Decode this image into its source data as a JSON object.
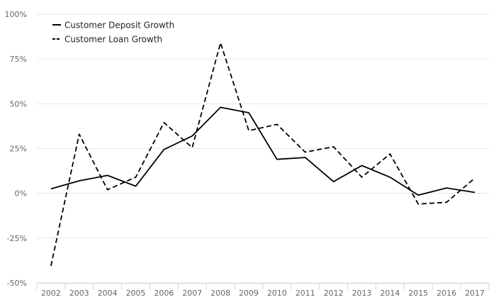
{
  "chart_data": {
    "type": "line",
    "title": "",
    "xlabel": "",
    "ylabel": "",
    "categories": [
      "2002",
      "2003",
      "2004",
      "2005",
      "2006",
      "2007",
      "2008",
      "2009",
      "2010",
      "2011",
      "2012",
      "2013",
      "2014",
      "2015",
      "2016",
      "2017"
    ],
    "y_ticks": [
      -50,
      -25,
      0,
      25,
      50,
      75,
      100
    ],
    "y_tick_labels": [
      "-50%",
      "-25%",
      "0%",
      "25%",
      "50%",
      "75%",
      "100%"
    ],
    "ylim": [
      -50,
      100
    ],
    "grid": true,
    "legend_position": "top-left",
    "series": [
      {
        "name": "Customer Deposit Growth",
        "line_style": "solid",
        "color": "#000000",
        "values": [
          2.5,
          7,
          10,
          4,
          24.5,
          32,
          48,
          45,
          19,
          20,
          6.5,
          15.5,
          9,
          -1,
          3,
          0.5
        ]
      },
      {
        "name": "Customer Loan Growth",
        "line_style": "dashed",
        "color": "#000000",
        "values": [
          -40.5,
          33,
          2,
          9,
          39.5,
          25.5,
          84,
          35,
          38.5,
          23,
          26,
          9,
          22,
          -6,
          -5,
          8.5
        ]
      }
    ],
    "colors": {
      "grid": "#e6e6e6",
      "axis": "#ccd6eb",
      "tick_text": "#666666"
    }
  }
}
